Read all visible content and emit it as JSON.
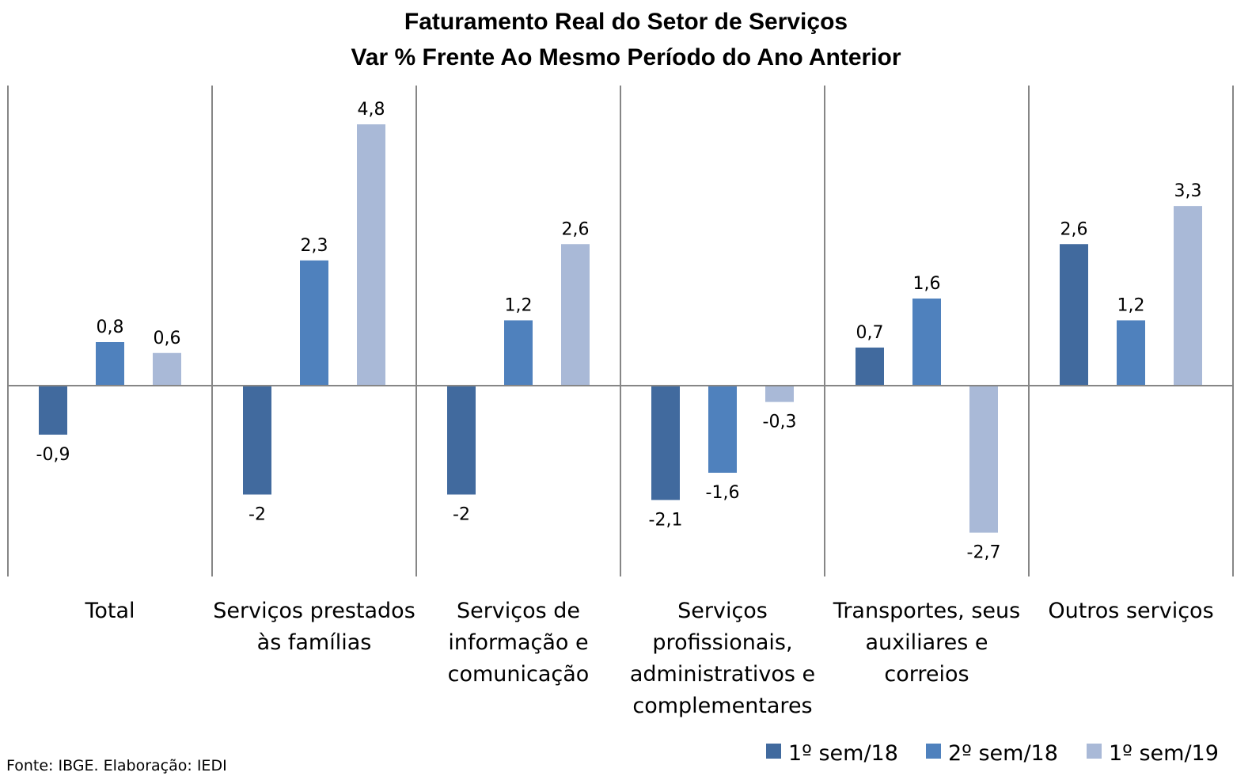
{
  "source_note": "Fonte: IBGE. Elaboração: IEDI",
  "chart_data": {
    "type": "bar",
    "title": "Faturamento Real do Setor de Serviços",
    "subtitle": "Var % Frente Ao Mesmo Período do Ano Anterior",
    "xlabel": "",
    "ylabel": "",
    "ylim": [
      -3.5,
      5.3
    ],
    "grid": false,
    "legend_position": "bottom-right",
    "categories": [
      [
        "Total"
      ],
      [
        "Serviços prestados",
        "às famílias"
      ],
      [
        "Serviços de",
        "informação e",
        "comunicação"
      ],
      [
        "Serviços",
        "profissionais,",
        "administrativos e",
        "complementares"
      ],
      [
        "Transportes, seus",
        "auxiliares e",
        "correios"
      ],
      [
        "Outros serviços"
      ]
    ],
    "series": [
      {
        "name": "1º sem/18",
        "color": "#416a9e",
        "values": [
          -0.9,
          -2,
          -2,
          -2.1,
          0.7,
          2.6
        ],
        "labels": [
          "-0,9",
          "-2",
          "-2",
          "-2,1",
          "0,7",
          "2,6"
        ]
      },
      {
        "name": "2º sem/18",
        "color": "#4f81bd",
        "values": [
          0.8,
          2.3,
          1.2,
          -1.6,
          1.6,
          1.2
        ],
        "labels": [
          "0,8",
          "2,3",
          "1,2",
          "-1,6",
          "1,6",
          "1,2"
        ]
      },
      {
        "name": "1º sem/19",
        "color": "#a9b9d7",
        "values": [
          0.6,
          4.8,
          2.6,
          -0.3,
          -2.7,
          3.3
        ],
        "labels": [
          "0,6",
          "4,8",
          "2,6",
          "-0,3",
          "-2,7",
          "3,3"
        ]
      }
    ]
  }
}
